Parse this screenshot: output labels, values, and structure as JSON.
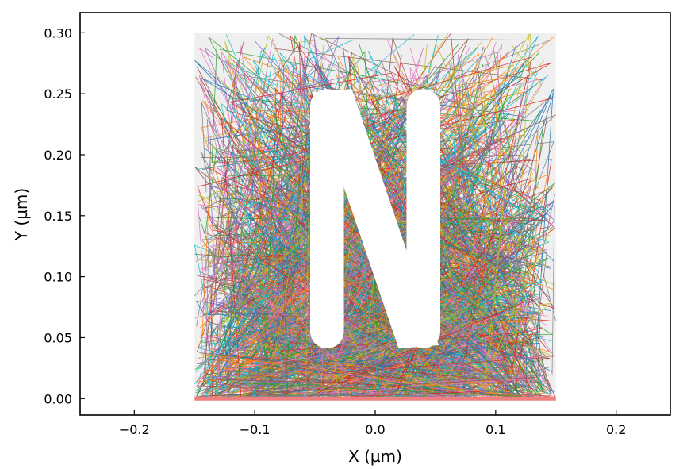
{
  "chart_data": {
    "type": "line",
    "title": "",
    "xlabel": "X (µm)",
    "ylabel": "Y (µm)",
    "xlim": [
      -0.245,
      0.245
    ],
    "ylim": [
      -0.0135,
      0.3165
    ],
    "xticks": [
      -0.2,
      -0.1,
      0.0,
      0.1,
      0.2
    ],
    "xtick_labels": [
      "−0.2",
      "−0.1",
      "0.0",
      "0.1",
      "0.2"
    ],
    "yticks": [
      0.0,
      0.05,
      0.1,
      0.15,
      0.2,
      0.25,
      0.3
    ],
    "ytick_labels": [
      "0.00",
      "0.05",
      "0.10",
      "0.15",
      "0.20",
      "0.25",
      "0.30"
    ],
    "grid": false,
    "legend": "none",
    "background_region": {
      "x": [
        -0.15,
        0.15
      ],
      "y": [
        0.0,
        0.3
      ],
      "color": "#efefef"
    },
    "letter_mask": {
      "shape": "N",
      "color": "#ffffff",
      "left_bar_x": [
        -0.054,
        -0.026
      ],
      "right_bar_x": [
        0.026,
        0.054
      ],
      "y": [
        0.055,
        0.24
      ]
    },
    "baseline": {
      "y": 0.0,
      "x": [
        -0.15,
        0.15
      ],
      "color": "#f08080"
    },
    "trajectories": {
      "count": 900,
      "x_range": [
        -0.15,
        0.15
      ],
      "y_range": [
        0.0,
        0.3
      ],
      "density": "highest near y=0, decreasing upward",
      "palette": [
        "#1f77b4",
        "#ff7f0e",
        "#2ca02c",
        "#d62728",
        "#9467bd",
        "#8c564b",
        "#e377c2",
        "#7f7f7f",
        "#bcbd22",
        "#17becf"
      ]
    }
  }
}
